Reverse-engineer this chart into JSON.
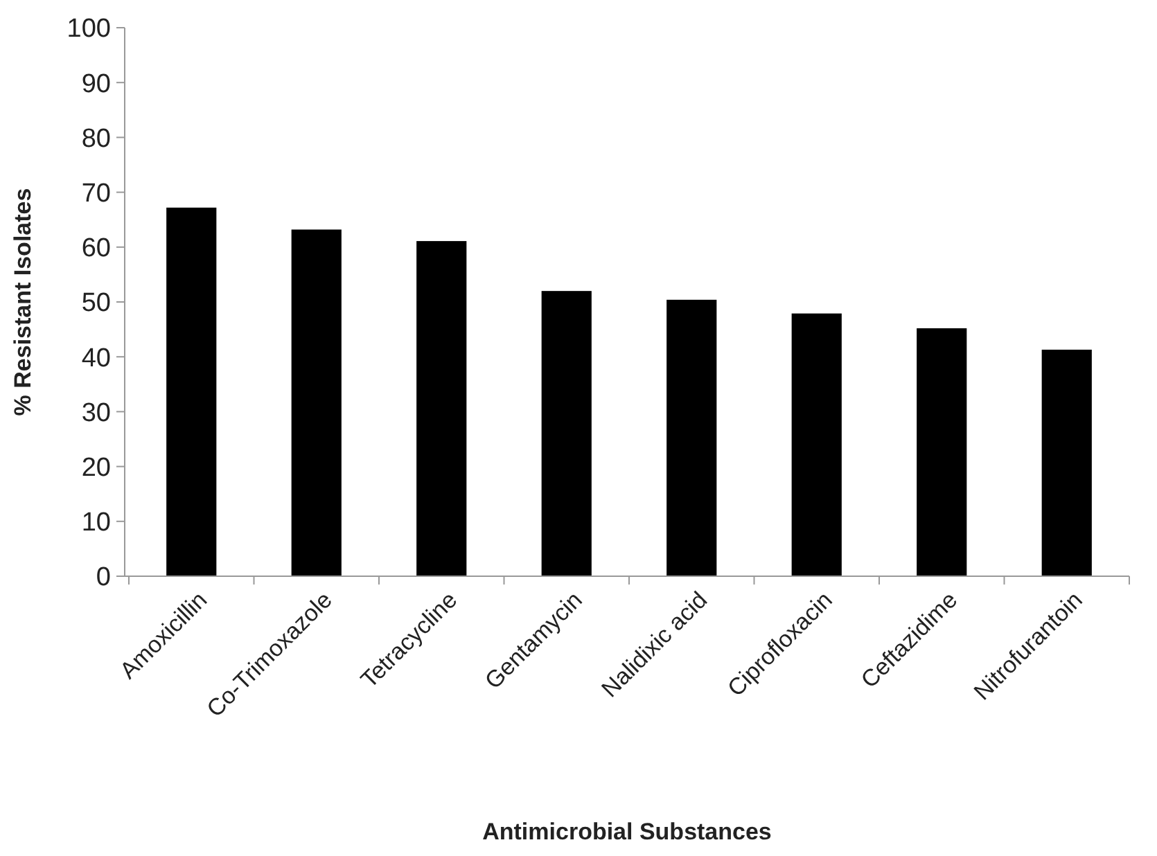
{
  "chart_data": {
    "type": "bar",
    "xlabel": "Antimicrobial Substances",
    "ylabel": "% Resistant Isolates",
    "categories": [
      "Amoxicillin",
      "Co-Trimoxazole",
      "Tetracycline",
      "Gentamycin",
      "Nalidixic acid",
      "Ciprofloxacin",
      "Ceftazidime",
      "Nitrofurantoin"
    ],
    "values": [
      67.2,
      63.2,
      61.1,
      52.0,
      50.4,
      47.9,
      45.2,
      41.3
    ],
    "color": "#000000",
    "ylim": [
      0,
      100
    ],
    "yticks": [
      0,
      10,
      20,
      30,
      40,
      50,
      60,
      70,
      80,
      90,
      100
    ],
    "grid": false
  }
}
